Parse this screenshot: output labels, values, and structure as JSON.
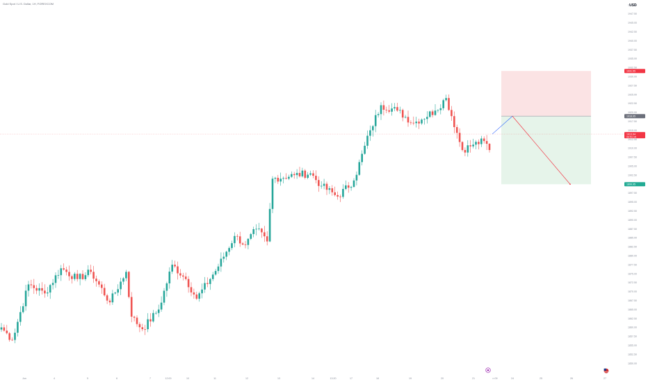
{
  "header": {
    "title": "Gold Spot / U.S. Dollar, 1H, FOREXCOM",
    "currency": "USD"
  },
  "colors": {
    "up": "#26a69a",
    "down": "#ef5350",
    "stop_zone": "#fbe3e4",
    "target_zone": "#e6f4ea",
    "stop_tag": "#f23645",
    "entry_tag": "#6b6f7a",
    "price_tag": "#f23645",
    "target_tag": "#22ab94",
    "projection_up": "#2962ff",
    "projection_down": "#f23645"
  },
  "chart_data": {
    "type": "candlestick",
    "symbol": "Gold Spot / U.S. Dollar",
    "timeframe": "1H",
    "currency": "USD",
    "y_axis_ticks": [
      "1950.00",
      "1947.50",
      "1945.00",
      "1942.50",
      "1940.00",
      "1937.50",
      "1935.00",
      "1932.50",
      "1930.00",
      "1927.50",
      "1925.00",
      "1922.50",
      "1920.00",
      "1917.50",
      "1915.00",
      "1912.50",
      "1910.00",
      "1907.50",
      "1905.00",
      "1902.50",
      "1900.00",
      "1897.50",
      "1895.00",
      "1892.50",
      "1890.00",
      "1887.50",
      "1885.00",
      "1882.50",
      "1880.00",
      "1877.50",
      "1875.00",
      "1872.50",
      "1870.00",
      "1867.50",
      "1865.00",
      "1862.50",
      "1860.00",
      "1857.50",
      "1855.00",
      "1852.50",
      "1850.00"
    ],
    "x_axis_ticks": [
      "Jun",
      "4",
      "5",
      "6",
      "7",
      "12:00",
      "10",
      "11",
      "12",
      "13",
      "14",
      "13:20",
      "17",
      "18",
      "19",
      "20",
      "21",
      "n 09",
      "24",
      "25",
      "26",
      "27"
    ],
    "anchors": [
      {
        "index": 0,
        "price": 1860.0
      },
      {
        "index": 4,
        "price": 1856.5
      },
      {
        "index": 10,
        "price": 1872.0
      },
      {
        "index": 16,
        "price": 1869.5
      },
      {
        "index": 22,
        "price": 1876.5
      },
      {
        "index": 28,
        "price": 1873.5
      },
      {
        "index": 33,
        "price": 1875.5
      },
      {
        "index": 40,
        "price": 1867.0
      },
      {
        "index": 46,
        "price": 1875.5
      },
      {
        "index": 48,
        "price": 1863.0
      },
      {
        "index": 52,
        "price": 1859.5
      },
      {
        "index": 58,
        "price": 1865.0
      },
      {
        "index": 63,
        "price": 1877.5
      },
      {
        "index": 68,
        "price": 1873.5
      },
      {
        "index": 72,
        "price": 1868.0
      },
      {
        "index": 80,
        "price": 1877.0
      },
      {
        "index": 86,
        "price": 1885.5
      },
      {
        "index": 90,
        "price": 1883.0
      },
      {
        "index": 94,
        "price": 1887.5
      },
      {
        "index": 98,
        "price": 1884.0
      },
      {
        "index": 100,
        "price": 1901.5
      },
      {
        "index": 108,
        "price": 1902.5
      },
      {
        "index": 114,
        "price": 1903.0
      },
      {
        "index": 118,
        "price": 1899.5
      },
      {
        "index": 124,
        "price": 1896.5
      },
      {
        "index": 130,
        "price": 1901.0
      },
      {
        "index": 136,
        "price": 1915.0
      },
      {
        "index": 140,
        "price": 1922.0
      },
      {
        "index": 146,
        "price": 1920.5
      },
      {
        "index": 152,
        "price": 1917.0
      },
      {
        "index": 160,
        "price": 1920.5
      },
      {
        "index": 164,
        "price": 1924.0
      },
      {
        "index": 170,
        "price": 1909.5
      },
      {
        "index": 174,
        "price": 1911.0
      },
      {
        "index": 178,
        "price": 1912.0
      },
      {
        "index": 180,
        "price": 1909.5
      }
    ],
    "trade_setup": {
      "direction": "short",
      "stop_loss": "1931.55",
      "entry": "1918.95",
      "current_price": "1913.94",
      "current_price_sub": "00:51:15",
      "target": "1899.95"
    }
  }
}
